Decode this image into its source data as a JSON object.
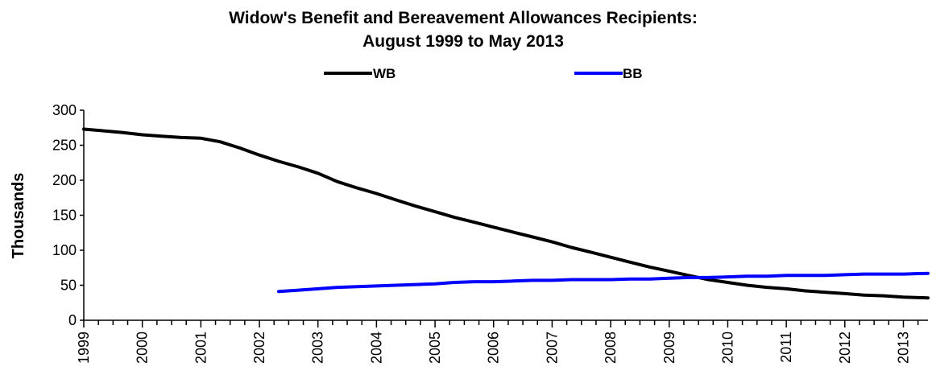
{
  "chart_data": {
    "type": "line",
    "title": [
      "Widow's Benefit and Bereavement Allowances Recipients:",
      "August 1999 to May 2013"
    ],
    "ylabel": "Thousands",
    "ylim": [
      0,
      300
    ],
    "yticks": [
      0,
      50,
      100,
      150,
      200,
      250,
      300
    ],
    "xlim": [
      1999.0,
      2013.42
    ],
    "xticks": [
      "1999",
      "2000",
      "2001",
      "2002",
      "2003",
      "2004",
      "2005",
      "2006",
      "2007",
      "2008",
      "2009",
      "2010",
      "2011",
      "2012",
      "2013"
    ],
    "legend_position": "top",
    "grid": false,
    "series": [
      {
        "name": "WB",
        "color": "#000000",
        "points": [
          [
            1999.0,
            273
          ],
          [
            1999.42,
            270
          ],
          [
            1999.67,
            268
          ],
          [
            2000.0,
            265
          ],
          [
            2000.33,
            263
          ],
          [
            2000.67,
            261
          ],
          [
            2001.0,
            260
          ],
          [
            2001.33,
            255
          ],
          [
            2001.67,
            246
          ],
          [
            2002.0,
            236
          ],
          [
            2002.33,
            227
          ],
          [
            2002.67,
            219
          ],
          [
            2003.0,
            210
          ],
          [
            2003.33,
            198
          ],
          [
            2003.67,
            189
          ],
          [
            2004.0,
            181
          ],
          [
            2004.33,
            172
          ],
          [
            2004.67,
            163
          ],
          [
            2005.0,
            155
          ],
          [
            2005.33,
            147
          ],
          [
            2005.67,
            140
          ],
          [
            2006.0,
            133
          ],
          [
            2006.33,
            126
          ],
          [
            2006.67,
            119
          ],
          [
            2007.0,
            112
          ],
          [
            2007.33,
            104
          ],
          [
            2007.67,
            97
          ],
          [
            2008.0,
            90
          ],
          [
            2008.33,
            83
          ],
          [
            2008.67,
            76
          ],
          [
            2009.0,
            70
          ],
          [
            2009.33,
            64
          ],
          [
            2009.67,
            58
          ],
          [
            2010.0,
            54
          ],
          [
            2010.33,
            50
          ],
          [
            2010.67,
            47
          ],
          [
            2011.0,
            45
          ],
          [
            2011.33,
            42
          ],
          [
            2011.67,
            40
          ],
          [
            2012.0,
            38
          ],
          [
            2012.33,
            36
          ],
          [
            2012.67,
            35
          ],
          [
            2013.0,
            33
          ],
          [
            2013.42,
            32
          ]
        ]
      },
      {
        "name": "BB",
        "color": "#0000ff",
        "points": [
          [
            2002.33,
            41
          ],
          [
            2002.67,
            43
          ],
          [
            2003.0,
            45
          ],
          [
            2003.33,
            47
          ],
          [
            2003.67,
            48
          ],
          [
            2004.0,
            49
          ],
          [
            2004.33,
            50
          ],
          [
            2004.67,
            51
          ],
          [
            2005.0,
            52
          ],
          [
            2005.33,
            54
          ],
          [
            2005.67,
            55
          ],
          [
            2006.0,
            55
          ],
          [
            2006.33,
            56
          ],
          [
            2006.67,
            57
          ],
          [
            2007.0,
            57
          ],
          [
            2007.33,
            58
          ],
          [
            2007.67,
            58
          ],
          [
            2008.0,
            58
          ],
          [
            2008.33,
            59
          ],
          [
            2008.67,
            59
          ],
          [
            2009.0,
            60
          ],
          [
            2009.33,
            61
          ],
          [
            2009.67,
            61
          ],
          [
            2010.0,
            62
          ],
          [
            2010.33,
            63
          ],
          [
            2010.67,
            63
          ],
          [
            2011.0,
            64
          ],
          [
            2011.33,
            64
          ],
          [
            2011.67,
            64
          ],
          [
            2012.0,
            65
          ],
          [
            2012.33,
            66
          ],
          [
            2012.67,
            66
          ],
          [
            2013.0,
            66
          ],
          [
            2013.42,
            67
          ]
        ]
      }
    ]
  }
}
